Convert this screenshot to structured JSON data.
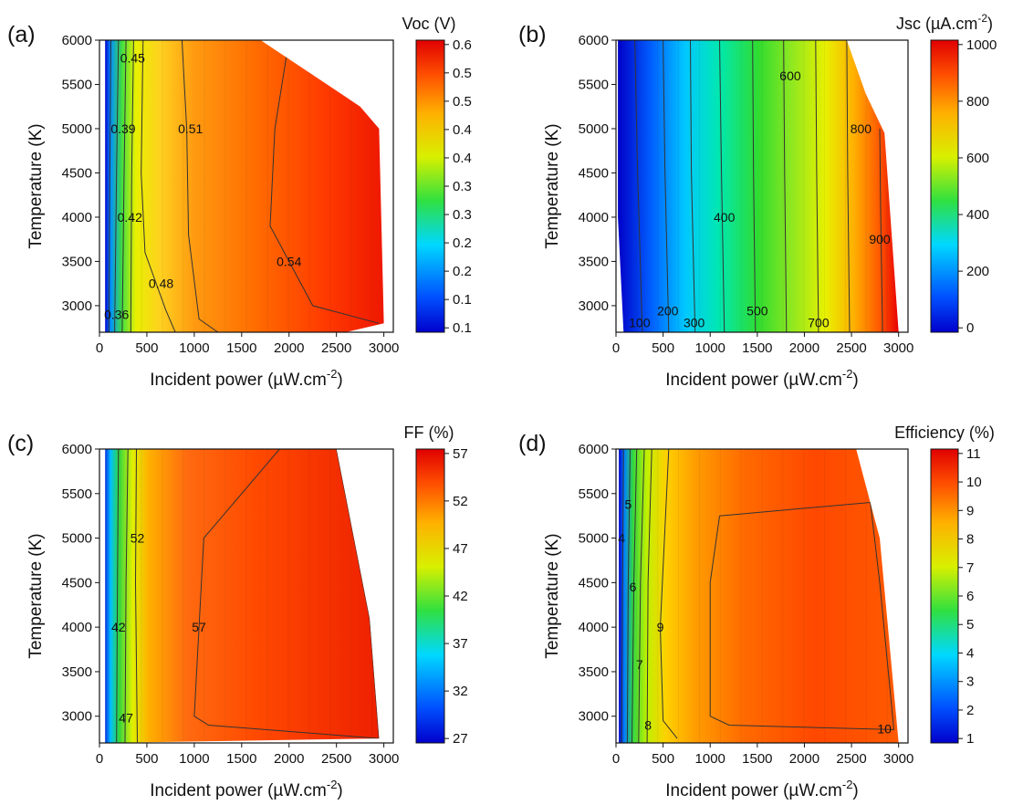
{
  "chart_data": [
    {
      "type": "heatmap",
      "panel_label": "(a)",
      "colorbar_title": "Voc (V)",
      "xlabel": "Incident power (µW.cm",
      "xlabel_sup": "-2",
      "xlabel_end": ")",
      "ylabel": "Temperature (K)",
      "xlim": [
        0,
        3100
      ],
      "ylim": [
        2700,
        6000
      ],
      "x_ticks": [
        "0",
        "500",
        "1000",
        "1500",
        "2000",
        "2500",
        "3000"
      ],
      "y_ticks": [
        "6000",
        "5500",
        "5000",
        "4500",
        "4000",
        "3500",
        "3000"
      ],
      "colorbar_ticks": [
        "0.6",
        "0.5",
        "0.5",
        "0.4",
        "0.4",
        "0.3",
        "0.3",
        "0.2",
        "0.2",
        "0.1",
        "0.1"
      ],
      "color_range": [
        0.1,
        0.6
      ],
      "boundary": [
        [
          60,
          6000
        ],
        [
          1700,
          6000
        ],
        [
          2750,
          5250
        ],
        [
          2950,
          5000
        ],
        [
          3000,
          2800
        ],
        [
          2600,
          2700
        ],
        [
          60,
          2700
        ]
      ],
      "contours": [
        {
          "level": "0.36",
          "label_at": [
            180,
            2900
          ],
          "path": [
            [
              120,
              6000
            ],
            [
              110,
              4500
            ],
            [
              100,
              2700
            ]
          ]
        },
        {
          "level": "0.39",
          "label_at": [
            250,
            5000
          ],
          "path": [
            [
              200,
              6000
            ],
            [
              180,
              4500
            ],
            [
              160,
              2700
            ]
          ]
        },
        {
          "level": "0.42",
          "label_at": [
            320,
            4000
          ],
          "path": [
            [
              280,
              6000
            ],
            [
              260,
              4500
            ],
            [
              240,
              2700
            ]
          ]
        },
        {
          "level": "0.45",
          "label_at": [
            350,
            5800
          ],
          "path": [
            [
              360,
              6000
            ],
            [
              340,
              4500
            ],
            [
              330,
              2700
            ]
          ]
        },
        {
          "level": "0.48",
          "label_at": [
            650,
            3250
          ],
          "path": [
            [
              460,
              6000
            ],
            [
              440,
              4500
            ],
            [
              480,
              3600
            ],
            [
              700,
              2950
            ],
            [
              800,
              2700
            ]
          ]
        },
        {
          "level": "0.51",
          "label_at": [
            960,
            5000
          ],
          "path": [
            [
              870,
              6000
            ],
            [
              920,
              5000
            ],
            [
              940,
              3800
            ],
            [
              1050,
              2850
            ],
            [
              1250,
              2700
            ]
          ]
        },
        {
          "level": "0.54",
          "label_at": [
            2000,
            3500
          ],
          "path": [
            [
              2000,
              6000
            ],
            [
              1850,
              5000
            ],
            [
              1800,
              3900
            ],
            [
              2250,
              3000
            ],
            [
              2950,
              2800
            ]
          ]
        }
      ]
    },
    {
      "type": "heatmap",
      "panel_label": "(b)",
      "colorbar_title": "Jsc (µA.cm",
      "colorbar_title_sup": "-2",
      "colorbar_title_end": ")",
      "xlabel": "Incident power (µW.cm",
      "xlabel_sup": "-2",
      "xlabel_end": ")",
      "ylabel": "Temperature (K)",
      "xlim": [
        0,
        3100
      ],
      "ylim": [
        2700,
        6000
      ],
      "x_ticks": [
        "0",
        "500",
        "1000",
        "1500",
        "2000",
        "2500",
        "3000"
      ],
      "y_ticks": [
        "6000",
        "5500",
        "5000",
        "4500",
        "4000",
        "3500",
        "3000"
      ],
      "colorbar_ticks": [
        "1000",
        "800",
        "600",
        "400",
        "200",
        "0"
      ],
      "color_range": [
        0,
        1000
      ],
      "boundary": [
        [
          20,
          6000
        ],
        [
          2450,
          6000
        ],
        [
          2650,
          5400
        ],
        [
          2850,
          4950
        ],
        [
          3000,
          2700
        ],
        [
          80,
          2700
        ],
        [
          20,
          4000
        ]
      ],
      "contours": [
        {
          "level": "100",
          "label_at": [
            250,
            2810
          ],
          "path": [
            [
              200,
              6000
            ],
            [
              230,
              4500
            ],
            [
              280,
              2700
            ]
          ]
        },
        {
          "level": "200",
          "label_at": [
            550,
            2940
          ],
          "path": [
            [
              500,
              6000
            ],
            [
              520,
              4500
            ],
            [
              560,
              2700
            ]
          ]
        },
        {
          "level": "300",
          "label_at": [
            830,
            2810
          ],
          "path": [
            [
              790,
              6000
            ],
            [
              800,
              4500
            ],
            [
              840,
              2700
            ]
          ]
        },
        {
          "level": "400",
          "label_at": [
            1150,
            4000
          ],
          "path": [
            [
              1100,
              6000
            ],
            [
              1120,
              4500
            ],
            [
              1150,
              2700
            ]
          ]
        },
        {
          "level": "500",
          "label_at": [
            1500,
            2940
          ],
          "path": [
            [
              1450,
              6000
            ],
            [
              1460,
              4500
            ],
            [
              1480,
              2700
            ]
          ]
        },
        {
          "level": "600",
          "label_at": [
            1850,
            5600
          ],
          "path": [
            [
              1780,
              6000
            ],
            [
              1790,
              4500
            ],
            [
              1810,
              2700
            ]
          ]
        },
        {
          "level": "700",
          "label_at": [
            2150,
            2810
          ],
          "path": [
            [
              2120,
              6000
            ],
            [
              2130,
              4500
            ],
            [
              2150,
              2700
            ]
          ]
        },
        {
          "level": "800",
          "label_at": [
            2600,
            5000
          ],
          "path": [
            [
              2450,
              6000
            ],
            [
              2460,
              4500
            ],
            [
              2480,
              2700
            ]
          ]
        },
        {
          "level": "900",
          "label_at": [
            2800,
            3750
          ],
          "path": [
            [
              2800,
              5000
            ],
            [
              2810,
              4000
            ],
            [
              2830,
              2700
            ]
          ]
        }
      ]
    },
    {
      "type": "heatmap",
      "panel_label": "(c)",
      "colorbar_title": "FF (%)",
      "xlabel": "Incident power (µW.cm",
      "xlabel_sup": "-2",
      "xlabel_end": ")",
      "ylabel": "Temperature (K)",
      "xlim": [
        0,
        3100
      ],
      "ylim": [
        2700,
        6000
      ],
      "x_ticks": [
        "0",
        "500",
        "1000",
        "1500",
        "2000",
        "2500",
        "3000"
      ],
      "y_ticks": [
        "6000",
        "5500",
        "5000",
        "4500",
        "4000",
        "3500",
        "3000"
      ],
      "colorbar_ticks": [
        "57",
        "52",
        "47",
        "42",
        "37",
        "32",
        "27"
      ],
      "color_range": [
        26,
        60
      ],
      "boundary": [
        [
          60,
          6000
        ],
        [
          2500,
          6000
        ],
        [
          2850,
          4100
        ],
        [
          2950,
          2750
        ],
        [
          60,
          2700
        ]
      ],
      "contours": [
        {
          "level": "42",
          "label_at": [
            200,
            4000
          ],
          "path": [
            [
              200,
              6000
            ],
            [
              190,
              4500
            ],
            [
              180,
              2700
            ]
          ]
        },
        {
          "level": "47",
          "label_at": [
            280,
            2980
          ],
          "path": [
            [
              300,
              6000
            ],
            [
              280,
              4500
            ],
            [
              270,
              2700
            ]
          ]
        },
        {
          "level": "52",
          "label_at": [
            400,
            5000
          ],
          "path": [
            [
              390,
              6000
            ],
            [
              380,
              4500
            ],
            [
              400,
              2700
            ]
          ]
        },
        {
          "level": "57",
          "label_at": [
            1050,
            4000
          ],
          "path": [
            [
              1900,
              6000
            ],
            [
              1100,
              5000
            ],
            [
              1000,
              3000
            ],
            [
              1150,
              2900
            ],
            [
              2950,
              2750
            ],
            [
              2850,
              4100
            ],
            [
              2500,
              6000
            ]
          ]
        }
      ]
    },
    {
      "type": "heatmap",
      "panel_label": "(d)",
      "colorbar_title": "Efficiency (%)",
      "xlabel": "Incident power (µW.cm",
      "xlabel_sup": "-2",
      "xlabel_end": ")",
      "ylabel": "Temperature (K)",
      "xlim": [
        0,
        3100
      ],
      "ylim": [
        2700,
        6000
      ],
      "x_ticks": [
        "0",
        "500",
        "1000",
        "1500",
        "2000",
        "2500",
        "3000"
      ],
      "y_ticks": [
        "6000",
        "5500",
        "5000",
        "4500",
        "4000",
        "3500",
        "3000"
      ],
      "colorbar_ticks": [
        "11",
        "10",
        "9",
        "8",
        "7",
        "6",
        "5",
        "4",
        "3",
        "2",
        "1"
      ],
      "color_range": [
        1,
        11
      ],
      "boundary": [
        [
          30,
          6000
        ],
        [
          2550,
          6000
        ],
        [
          2800,
          5000
        ],
        [
          3000,
          2700
        ],
        [
          30,
          2700
        ]
      ],
      "contours": [
        {
          "level": "4",
          "label_at": [
            60,
            5000
          ],
          "path": [
            [
              80,
              6000
            ],
            [
              70,
              4500
            ],
            [
              60,
              2700
            ]
          ]
        },
        {
          "level": "5",
          "label_at": [
            130,
            5380
          ],
          "path": [
            [
              150,
              6000
            ],
            [
              130,
              4500
            ],
            [
              120,
              2700
            ]
          ]
        },
        {
          "level": "6",
          "label_at": [
            180,
            4450
          ],
          "path": [
            [
              220,
              6000
            ],
            [
              190,
              4500
            ],
            [
              170,
              2700
            ]
          ]
        },
        {
          "level": "7",
          "label_at": [
            250,
            3580
          ],
          "path": [
            [
              300,
              6000
            ],
            [
              260,
              4500
            ],
            [
              240,
              2700
            ]
          ]
        },
        {
          "level": "8",
          "label_at": [
            340,
            2900
          ],
          "path": [
            [
              380,
              6000
            ],
            [
              340,
              4500
            ],
            [
              330,
              2700
            ]
          ]
        },
        {
          "level": "9",
          "label_at": [
            470,
            4000
          ],
          "path": [
            [
              560,
              6000
            ],
            [
              470,
              4000
            ],
            [
              500,
              2950
            ],
            [
              650,
              2750
            ]
          ]
        },
        {
          "level": "10",
          "label_at": [
            2850,
            2860
          ],
          "path": [
            [
              1100,
              5250
            ],
            [
              2700,
              5400
            ],
            [
              2800,
              4500
            ],
            [
              2950,
              2850
            ],
            [
              1200,
              2900
            ],
            [
              1000,
              3000
            ],
            [
              1000,
              4500
            ],
            [
              1100,
              5250
            ]
          ]
        }
      ]
    }
  ]
}
